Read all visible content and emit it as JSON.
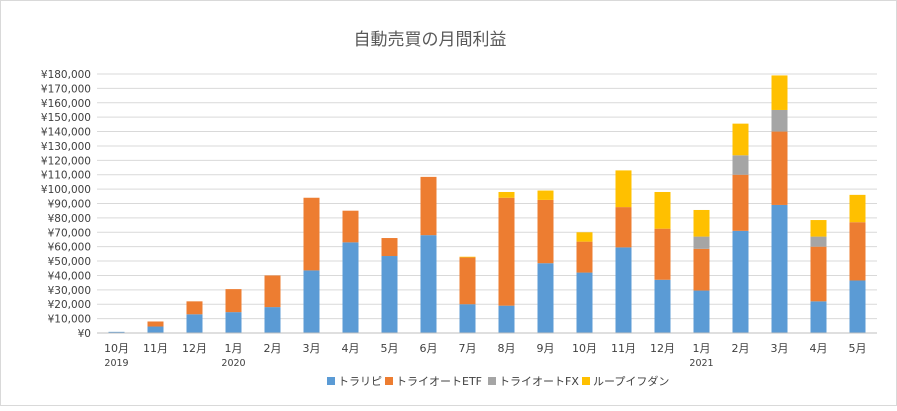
{
  "chart_data": {
    "type": "bar",
    "stacked": true,
    "title": "自動売買の月間利益",
    "categories": [
      "10月",
      "11月",
      "12月",
      "1月",
      "2月",
      "3月",
      "4月",
      "5月",
      "6月",
      "7月",
      "8月",
      "9月",
      "10月",
      "11月",
      "12月",
      "1月",
      "2月",
      "3月",
      "4月",
      "5月"
    ],
    "year_labels": [
      {
        "index": 0,
        "label": "2019"
      },
      {
        "index": 3,
        "label": "2020"
      },
      {
        "index": 15,
        "label": "2021"
      }
    ],
    "series": [
      {
        "name": "トラリピ",
        "color": "#5B9BD5",
        "values": [
          800,
          4500,
          13000,
          14500,
          18000,
          43500,
          63000,
          53500,
          68000,
          20000,
          19000,
          48500,
          42000,
          59500,
          37000,
          29500,
          71000,
          89000,
          22000,
          36500
        ]
      },
      {
        "name": "トライオートETF",
        "color": "#ED7D31",
        "values": [
          0,
          3500,
          9000,
          16000,
          22000,
          50500,
          22000,
          12500,
          40500,
          32500,
          75000,
          44000,
          21500,
          28000,
          35500,
          29000,
          39000,
          51000,
          38000,
          40500
        ]
      },
      {
        "name": "トライオートFX",
        "color": "#A5A5A5",
        "values": [
          0,
          0,
          0,
          0,
          0,
          0,
          0,
          0,
          0,
          0,
          0,
          0,
          0,
          0,
          0,
          8500,
          13500,
          15000,
          7000,
          0
        ]
      },
      {
        "name": "ループイフダン",
        "color": "#FFC000",
        "values": [
          0,
          0,
          0,
          0,
          0,
          0,
          0,
          0,
          0,
          500,
          4000,
          6500,
          6500,
          25500,
          25500,
          18500,
          22000,
          24000,
          11500,
          19000
        ]
      }
    ],
    "ylim": [
      0,
      180000
    ],
    "ytick_step": 10000,
    "ytick_labels": [
      "¥0",
      "¥10,000",
      "¥20,000",
      "¥30,000",
      "¥40,000",
      "¥50,000",
      "¥60,000",
      "¥70,000",
      "¥80,000",
      "¥90,000",
      "¥100,000",
      "¥110,000",
      "¥120,000",
      "¥130,000",
      "¥140,000",
      "¥150,000",
      "¥160,000",
      "¥170,000",
      "¥180,000"
    ],
    "grid": true,
    "legend_position": "bottom"
  }
}
